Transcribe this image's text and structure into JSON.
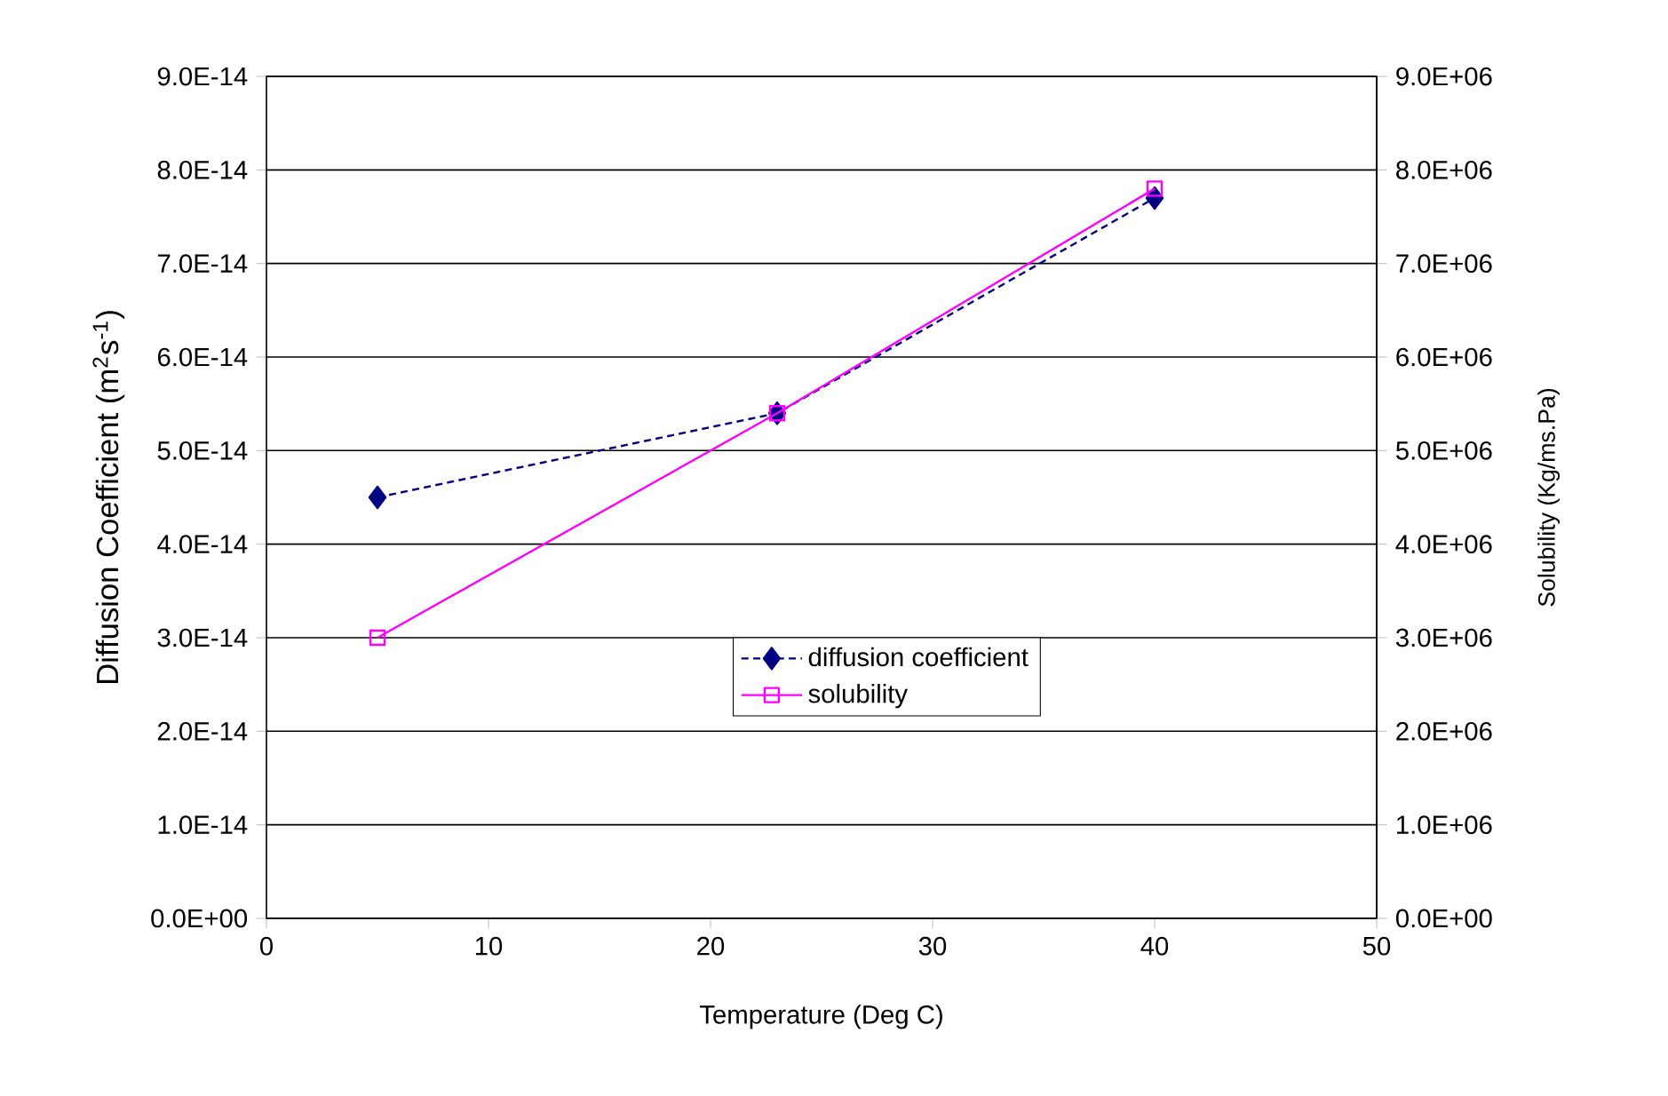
{
  "chart_data": {
    "type": "line",
    "xlabel": "Temperature (Deg C)",
    "ylabel": "Diffusion Coefficient (m$^{2}$s$^{-1}$)",
    "y2label": "Solubility (Kg/ms.Pa)",
    "x": [
      5,
      23,
      40
    ],
    "series": [
      {
        "name": "diffusion coefficient",
        "color": "#000080",
        "values": [
          4.5e-14,
          5.4e-14,
          7.7e-14
        ],
        "marker": "diamond",
        "line_style": "dashed"
      },
      {
        "name": "solubility",
        "color": "#ff00ff",
        "values": [
          3000000.0,
          5400000.0,
          7800000.0
        ],
        "marker": "square",
        "line_style": "solid",
        "axis": "y2"
      }
    ],
    "xlim": [
      0,
      50
    ],
    "xticks": [
      0,
      10,
      20,
      30,
      40,
      50
    ],
    "ylim": [
      0,
      9e-14
    ],
    "yticks": [
      {
        "value": 0,
        "label": "0.0E+00"
      },
      {
        "value": 1e-14,
        "label": "1.0E-14"
      },
      {
        "value": 2e-14,
        "label": "2.0E-14"
      },
      {
        "value": 3e-14,
        "label": "3.0E-14"
      },
      {
        "value": 4e-14,
        "label": "4.0E-14"
      },
      {
        "value": 5e-14,
        "label": "5.0E-14"
      },
      {
        "value": 6e-14,
        "label": "6.0E-14"
      },
      {
        "value": 7e-14,
        "label": "7.0E-14"
      },
      {
        "value": 8e-14,
        "label": "8.0E-14"
      },
      {
        "value": 9e-14,
        "label": "9.0E-14"
      }
    ],
    "y2lim": [
      0,
      9000000.0
    ],
    "y2ticks": [
      {
        "value": 0,
        "label": "0.0E+00"
      },
      {
        "value": 1000000.0,
        "label": "1.0E+06"
      },
      {
        "value": 2000000.0,
        "label": "2.0E+06"
      },
      {
        "value": 3000000.0,
        "label": "3.0E+06"
      },
      {
        "value": 4000000.0,
        "label": "4.0E+06"
      },
      {
        "value": 5000000.0,
        "label": "5.0E+06"
      },
      {
        "value": 6000000.0,
        "label": "6.0E+06"
      },
      {
        "value": 7000000.0,
        "label": "7.0E+06"
      },
      {
        "value": 8000000.0,
        "label": "8.0E+06"
      },
      {
        "value": 9000000.0,
        "label": "9.0E+06"
      }
    ],
    "grid": "y",
    "legend": "bottom right"
  }
}
